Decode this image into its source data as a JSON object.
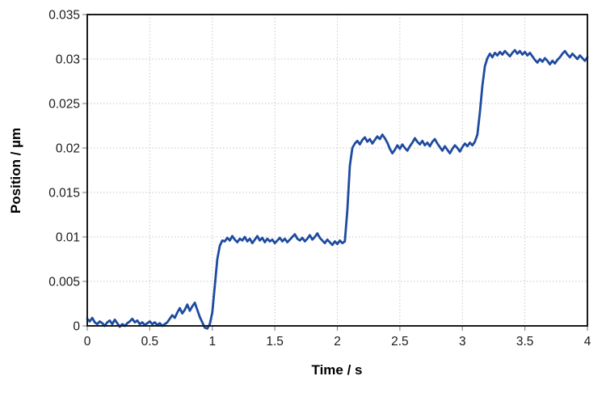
{
  "page": {
    "background": "#ffffff"
  },
  "chart_data": {
    "type": "line",
    "title": "",
    "xlabel": "Time / s",
    "ylabel": "Position / µm",
    "xlim": [
      0,
      4
    ],
    "ylim": [
      0,
      0.035
    ],
    "grid": true,
    "legend_position": "none",
    "x_ticks": {
      "values": [
        0,
        0.5,
        1,
        1.5,
        2,
        2.5,
        3,
        3.5,
        4
      ],
      "labels": [
        "0",
        "0.5",
        "1",
        "1.5",
        "2",
        "2.5",
        "3",
        "3.5",
        "4"
      ]
    },
    "y_ticks": {
      "values": [
        0,
        0.005,
        0.01,
        0.015,
        0.02,
        0.025,
        0.03,
        0.035
      ],
      "labels": [
        "0",
        "0.005",
        "0.01",
        "0.015",
        "0.02",
        "0.025",
        "0.03",
        "0.035"
      ]
    },
    "styles": {
      "line_color": "#1E4BA0",
      "grid_color": "#c7c7c7",
      "axis_color": "#1a1a1a",
      "tick_color": "#8c8c8c",
      "text_color": "#1a1a1a"
    },
    "series": [
      {
        "name": "position",
        "x_start": 0,
        "x_step": 0.02,
        "y": [
          0.0008,
          0.0005,
          0.0009,
          0.0004,
          0.0002,
          0.0005,
          0.0003,
          0.0,
          0.0004,
          0.0006,
          0.0002,
          0.0007,
          0.0003,
          -0.0001,
          0.0002,
          0.0,
          0.0003,
          0.0005,
          0.0008,
          0.0004,
          0.0006,
          0.0002,
          0.0004,
          0.0001,
          0.0003,
          0.0005,
          0.0002,
          0.0004,
          0.0001,
          0.0003,
          0.0,
          0.0002,
          0.0004,
          0.0008,
          0.0012,
          0.0009,
          0.0015,
          0.002,
          0.0014,
          0.0018,
          0.0024,
          0.0017,
          0.0022,
          0.0026,
          0.0018,
          0.001,
          0.0004,
          -0.0002,
          -0.0003,
          0.0002,
          0.0015,
          0.0045,
          0.0075,
          0.009,
          0.0096,
          0.0095,
          0.0099,
          0.0096,
          0.0101,
          0.0097,
          0.0094,
          0.0098,
          0.0096,
          0.01,
          0.0095,
          0.0098,
          0.0093,
          0.0097,
          0.0101,
          0.0096,
          0.0099,
          0.0094,
          0.0098,
          0.0095,
          0.0097,
          0.0093,
          0.0096,
          0.0099,
          0.0095,
          0.0098,
          0.0094,
          0.0097,
          0.01,
          0.0103,
          0.0098,
          0.0096,
          0.0099,
          0.0095,
          0.0098,
          0.0102,
          0.0097,
          0.01,
          0.0104,
          0.0099,
          0.0096,
          0.0093,
          0.0097,
          0.0094,
          0.0091,
          0.0095,
          0.0092,
          0.0096,
          0.0093,
          0.0095,
          0.013,
          0.018,
          0.02,
          0.0205,
          0.0208,
          0.0204,
          0.0209,
          0.0212,
          0.0207,
          0.021,
          0.0205,
          0.0209,
          0.0213,
          0.021,
          0.0215,
          0.0211,
          0.0206,
          0.0199,
          0.0194,
          0.0198,
          0.0203,
          0.0199,
          0.0204,
          0.02,
          0.0197,
          0.0202,
          0.0206,
          0.0211,
          0.0207,
          0.0204,
          0.0208,
          0.0203,
          0.0206,
          0.0202,
          0.0207,
          0.021,
          0.0205,
          0.0201,
          0.0197,
          0.0202,
          0.0198,
          0.0194,
          0.0199,
          0.0203,
          0.02,
          0.0196,
          0.0201,
          0.0205,
          0.0202,
          0.0206,
          0.0203,
          0.0207,
          0.0215,
          0.024,
          0.027,
          0.0292,
          0.0301,
          0.0306,
          0.0302,
          0.0307,
          0.0304,
          0.0308,
          0.0305,
          0.0309,
          0.0306,
          0.0303,
          0.0307,
          0.031,
          0.0306,
          0.0309,
          0.0305,
          0.0308,
          0.0304,
          0.0307,
          0.0303,
          0.0299,
          0.0296,
          0.03,
          0.0297,
          0.0301,
          0.0298,
          0.0294,
          0.0298,
          0.0295,
          0.0299,
          0.0302,
          0.0306,
          0.0309,
          0.0305,
          0.0302,
          0.0306,
          0.0303,
          0.03,
          0.0304,
          0.0301,
          0.0298,
          0.0302
        ]
      }
    ]
  }
}
